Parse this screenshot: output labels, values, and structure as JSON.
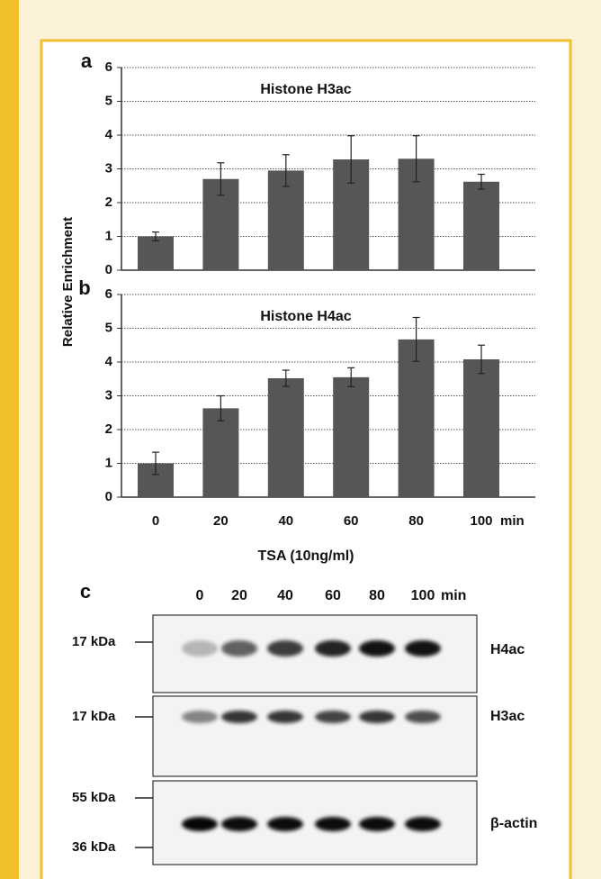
{
  "chart_data": [
    {
      "type": "bar",
      "panel_label": "a",
      "title": "Histone H3ac",
      "y_label": "Relative Enrichment",
      "categories": [
        null,
        null,
        null,
        null,
        null,
        null
      ],
      "values": [
        1,
        2.7,
        2.95,
        3.28,
        3.3,
        2.62
      ],
      "errors": [
        0.13,
        0.48,
        0.47,
        0.7,
        0.68,
        0.22
      ],
      "color": "#565656",
      "ylim": [
        0,
        6
      ],
      "yticks": [
        0,
        1,
        2,
        3,
        4,
        5,
        6
      ],
      "grid": true
    },
    {
      "type": "bar",
      "panel_label": "b",
      "title": "Histone H4ac",
      "x_label": "TSA (10ng/ml)",
      "x_unit": "min",
      "categories": [
        "0",
        "20",
        "40",
        "60",
        "80",
        "100"
      ],
      "values": [
        1,
        2.63,
        3.52,
        3.55,
        4.67,
        4.08
      ],
      "errors": [
        0.33,
        0.37,
        0.24,
        0.28,
        0.65,
        0.42
      ],
      "color": "#565656",
      "ylim": [
        0,
        6
      ],
      "yticks": [
        0,
        1,
        2,
        3,
        4,
        5,
        6
      ],
      "grid": true
    }
  ],
  "blot": {
    "panel_label": "c",
    "lanes": [
      "0",
      "20",
      "40",
      "60",
      "80",
      "100"
    ],
    "lane_unit": "min",
    "rows": [
      {
        "label": "H4ac",
        "markers": [
          "17 kDa"
        ]
      },
      {
        "label": "H3ac",
        "markers": [
          "17 kDa"
        ]
      },
      {
        "label": "β-actin",
        "markers": [
          "55 kDa",
          "36 kDa"
        ]
      }
    ]
  }
}
